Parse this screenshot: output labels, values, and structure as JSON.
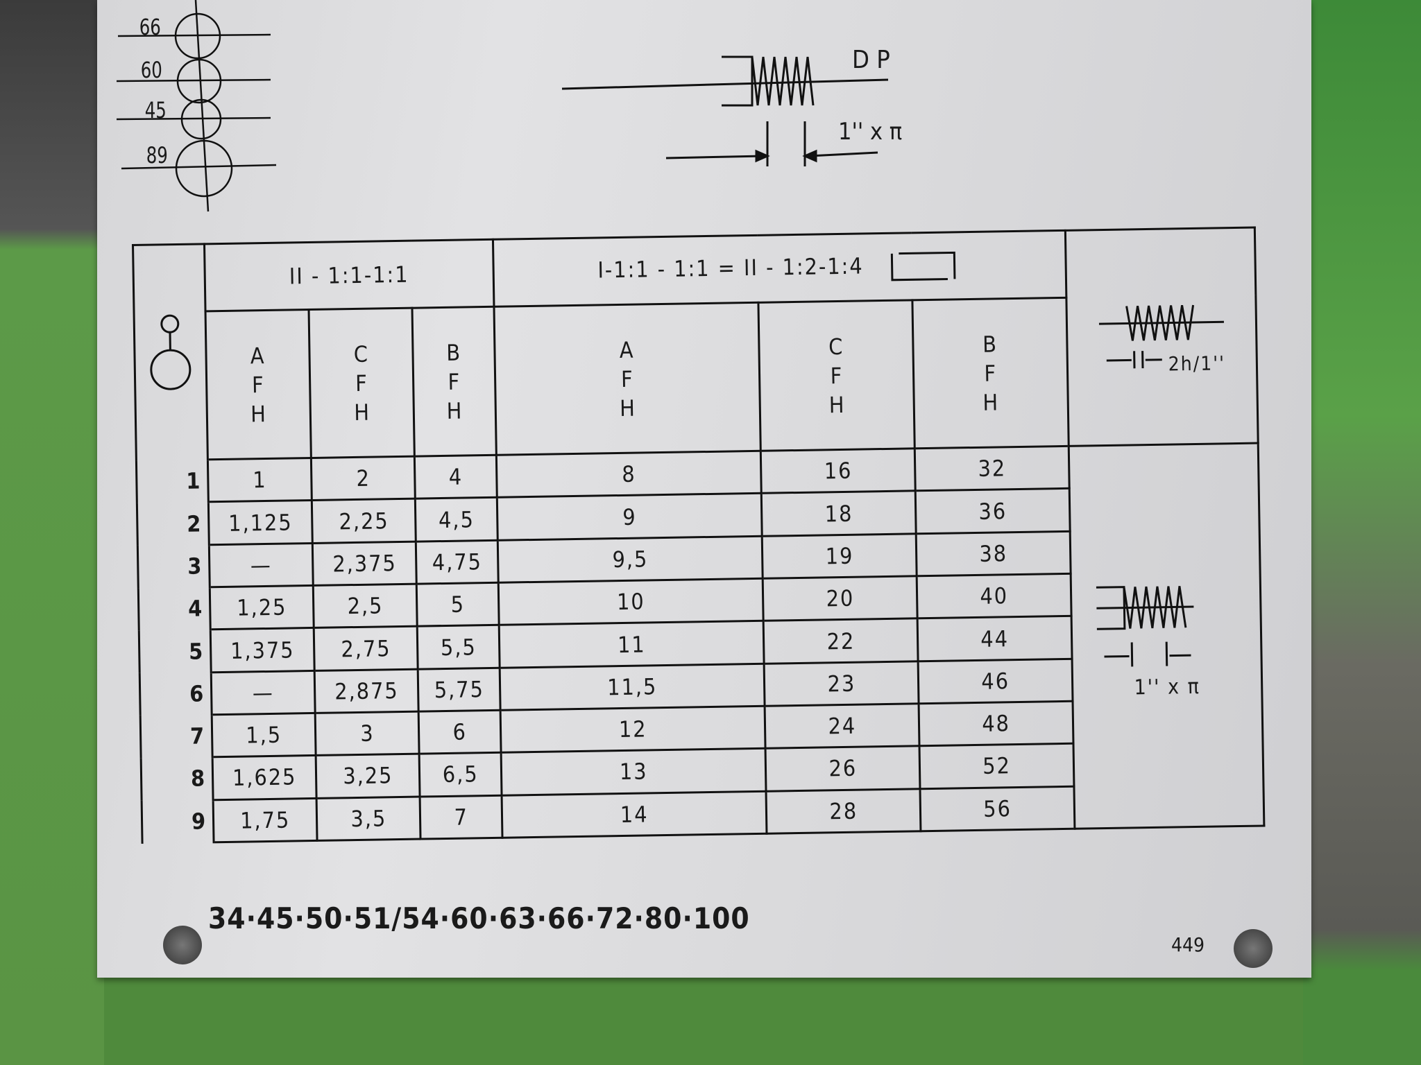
{
  "gear_diagram": {
    "labels": [
      "66",
      "60",
      "45",
      "89"
    ]
  },
  "thread_diagram_top": {
    "label_dp": "D P",
    "label_pitch": "1'' x π"
  },
  "chart": {
    "group_headers": [
      "II - 1:1-1:1",
      "I-1:1 - 1:1 = II - 1:2-1:4"
    ],
    "column_headers": [
      [
        "A",
        "F",
        "H"
      ],
      [
        "C",
        "F",
        "H"
      ],
      [
        "B",
        "F",
        "H"
      ],
      [
        "A",
        "F",
        "H"
      ],
      [
        "C",
        "F",
        "H"
      ],
      [
        "B",
        "F",
        "H"
      ]
    ],
    "right_icons": {
      "top_label": "2h/1''",
      "bottom_label": "1'' x π"
    },
    "rows": [
      {
        "n": "1",
        "values": [
          "1",
          "2",
          "4",
          "8",
          "16",
          "32"
        ]
      },
      {
        "n": "2",
        "values": [
          "1,125",
          "2,25",
          "4,5",
          "9",
          "18",
          "36"
        ]
      },
      {
        "n": "3",
        "values": [
          "—",
          "2,375",
          "4,75",
          "9,5",
          "19",
          "38"
        ]
      },
      {
        "n": "4",
        "values": [
          "1,25",
          "2,5",
          "5",
          "10",
          "20",
          "40"
        ]
      },
      {
        "n": "5",
        "values": [
          "1,375",
          "2,75",
          "5,5",
          "11",
          "22",
          "44"
        ]
      },
      {
        "n": "6",
        "values": [
          "—",
          "2,875",
          "5,75",
          "11,5",
          "23",
          "46"
        ]
      },
      {
        "n": "7",
        "values": [
          "1,5",
          "3",
          "6",
          "12",
          "24",
          "48"
        ]
      },
      {
        "n": "8",
        "values": [
          "1,625",
          "3,25",
          "6,5",
          "13",
          "26",
          "52"
        ]
      },
      {
        "n": "9",
        "values": [
          "1,75",
          "3,5",
          "7",
          "14",
          "28",
          "56"
        ]
      }
    ]
  },
  "gear_list": "34·45·50·51/54·60·63·66·72·80·100",
  "plate_code": "449",
  "colors": {
    "plate": "#dcdcde",
    "machine_green": "#5a9a46",
    "ink": "#111111"
  }
}
